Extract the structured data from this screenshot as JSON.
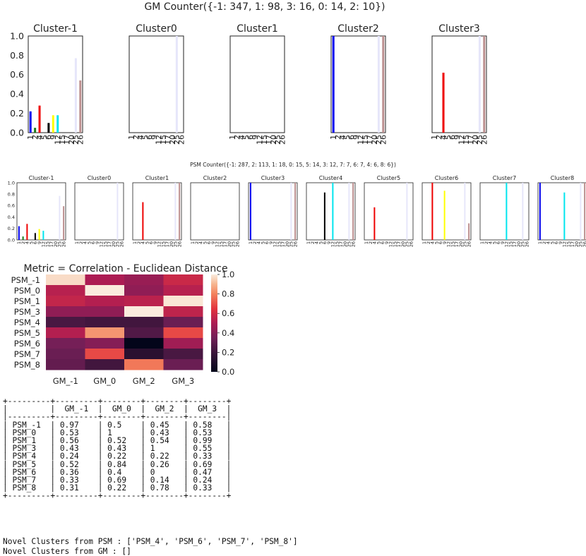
{
  "chart_data": [
    {
      "type": "bar",
      "title": "GM Counter({-1: 347, 1: 98, 3: 16, 0: 14, 2: 10})",
      "ylim": [
        0,
        1.0
      ],
      "yticks": [
        "0.0",
        "0.2",
        "0.4",
        "0.6",
        "0.8",
        "1.0"
      ],
      "categories": [
        "1",
        "2",
        "4",
        "5",
        "6",
        "9",
        "12",
        "15",
        "17",
        "20",
        "25",
        "26"
      ],
      "subplots": [
        {
          "title": "Cluster-1",
          "bars": [
            {
              "x": "1",
              "value": 0.22,
              "color": "#0000ee"
            },
            {
              "x": "2",
              "value": 0.05,
              "color": "#1a7a1a"
            },
            {
              "x": "4",
              "value": 0.28,
              "color": "#ee0000"
            },
            {
              "x": "6",
              "value": 0.1,
              "color": "#000000"
            },
            {
              "x": "9",
              "value": 0.18,
              "color": "#ffff00"
            },
            {
              "x": "12",
              "value": 0.18,
              "color": "#00e5ee"
            },
            {
              "x": "25",
              "value": 0.77,
              "color": "#e6e6fa"
            },
            {
              "x": "26",
              "value": 0.54,
              "color": "#bc8f8f"
            }
          ]
        },
        {
          "title": "Cluster0",
          "bars": [
            {
              "x": "25",
              "value": 1.0,
              "color": "#e6e6fa"
            }
          ]
        },
        {
          "title": "Cluster1",
          "bars": []
        },
        {
          "title": "Cluster2",
          "bars": [
            {
              "x": "1",
              "value": 1.0,
              "color": "#0000ee"
            },
            {
              "x": "25",
              "value": 1.0,
              "color": "#e6e6fa"
            },
            {
              "x": "26",
              "value": 1.0,
              "color": "#bc8f8f"
            }
          ]
        },
        {
          "title": "Cluster3",
          "bars": [
            {
              "x": "4",
              "value": 0.62,
              "color": "#ee0000"
            },
            {
              "x": "25",
              "value": 1.0,
              "color": "#e6e6fa"
            },
            {
              "x": "26",
              "value": 1.0,
              "color": "#bc8f8f"
            }
          ]
        }
      ]
    },
    {
      "type": "bar",
      "title": "PSM Counter({-1: 287, 2: 113, 1: 18, 0: 15, 5: 14, 3: 12, 7: 7, 6: 7, 4: 6, 8: 6})",
      "ylim": [
        0,
        1.0
      ],
      "yticks": [
        "0.0",
        "0.2",
        "0.4",
        "0.6",
        "0.8",
        "1.0"
      ],
      "categories": [
        "1",
        "2",
        "4",
        "5",
        "6",
        "9",
        "12",
        "15",
        "17",
        "20",
        "25",
        "26"
      ],
      "subplots": [
        {
          "title": "Cluster-1",
          "bars": [
            {
              "x": "1",
              "value": 0.24,
              "color": "#0000ee"
            },
            {
              "x": "2",
              "value": 0.06,
              "color": "#1a7a1a"
            },
            {
              "x": "4",
              "value": 0.28,
              "color": "#ee0000"
            },
            {
              "x": "6",
              "value": 0.12,
              "color": "#000000"
            },
            {
              "x": "9",
              "value": 0.19,
              "color": "#ffff00"
            },
            {
              "x": "12",
              "value": 0.16,
              "color": "#00e5ee"
            },
            {
              "x": "25",
              "value": 0.77,
              "color": "#e6e6fa"
            },
            {
              "x": "26",
              "value": 0.59,
              "color": "#bc8f8f"
            }
          ]
        },
        {
          "title": "Cluster0",
          "bars": [
            {
              "x": "25",
              "value": 1.0,
              "color": "#e6e6fa"
            }
          ]
        },
        {
          "title": "Cluster1",
          "bars": [
            {
              "x": "4",
              "value": 0.66,
              "color": "#ee0000"
            },
            {
              "x": "25",
              "value": 1.0,
              "color": "#e6e6fa"
            },
            {
              "x": "26",
              "value": 1.0,
              "color": "#bc8f8f"
            }
          ]
        },
        {
          "title": "Cluster2",
          "bars": []
        },
        {
          "title": "Cluster3",
          "bars": [
            {
              "x": "1",
              "value": 1.0,
              "color": "#0000ee"
            },
            {
              "x": "25",
              "value": 1.0,
              "color": "#e6e6fa"
            },
            {
              "x": "26",
              "value": 1.0,
              "color": "#bc8f8f"
            }
          ]
        },
        {
          "title": "Cluster4",
          "bars": [
            {
              "x": "6",
              "value": 0.83,
              "color": "#000000"
            },
            {
              "x": "12",
              "value": 1.0,
              "color": "#00e5ee"
            },
            {
              "x": "25",
              "value": 1.0,
              "color": "#e6e6fa"
            },
            {
              "x": "26",
              "value": 1.0,
              "color": "#bc8f8f"
            }
          ]
        },
        {
          "title": "Cluster5",
          "bars": [
            {
              "x": "4",
              "value": 0.57,
              "color": "#ee0000"
            },
            {
              "x": "25",
              "value": 1.0,
              "color": "#e6e6fa"
            }
          ]
        },
        {
          "title": "Cluster6",
          "bars": [
            {
              "x": "4",
              "value": 1.0,
              "color": "#ee0000"
            },
            {
              "x": "9",
              "value": 0.86,
              "color": "#ffff00"
            },
            {
              "x": "25",
              "value": 1.0,
              "color": "#e6e6fa"
            },
            {
              "x": "26",
              "value": 0.29,
              "color": "#bc8f8f"
            }
          ]
        },
        {
          "title": "Cluster7",
          "bars": [
            {
              "x": "12",
              "value": 1.0,
              "color": "#00e5ee"
            },
            {
              "x": "25",
              "value": 1.0,
              "color": "#e6e6fa"
            }
          ]
        },
        {
          "title": "Cluster8",
          "bars": [
            {
              "x": "1",
              "value": 1.0,
              "color": "#0000ee"
            },
            {
              "x": "12",
              "value": 0.83,
              "color": "#00e5ee"
            },
            {
              "x": "25",
              "value": 1.0,
              "color": "#e6e6fa"
            },
            {
              "x": "26",
              "value": 1.0,
              "color": "#bc8f8f"
            }
          ]
        }
      ]
    },
    {
      "type": "heatmap",
      "title": "Metric = Correlation - Euclidean Distance",
      "xlabels": [
        "GM_-1",
        "GM_0",
        "GM_2",
        "GM_3"
      ],
      "ylabels": [
        "PSM_-1",
        "PSM_0",
        "PSM_1",
        "PSM_3",
        "PSM_4",
        "PSM_5",
        "PSM_6",
        "PSM_7",
        "PSM_8"
      ],
      "values": [
        [
          0.97,
          0.5,
          0.45,
          0.58
        ],
        [
          0.53,
          1,
          0.43,
          0.53
        ],
        [
          0.56,
          0.52,
          0.54,
          0.99
        ],
        [
          0.43,
          0.43,
          1,
          0.55
        ],
        [
          0.24,
          0.22,
          0.22,
          0.33
        ],
        [
          0.52,
          0.84,
          0.26,
          0.69
        ],
        [
          0.36,
          0.4,
          0,
          0.47
        ],
        [
          0.33,
          0.69,
          0.14,
          0.24
        ],
        [
          0.31,
          0.22,
          0.78,
          0.33
        ]
      ],
      "vmin": 0.0,
      "vmax": 1.0,
      "colorbar_ticks": [
        "0.0",
        "0.2",
        "0.4",
        "0.6",
        "0.8",
        "1.0"
      ]
    }
  ],
  "table": {
    "header": [
      "",
      "GM_-1",
      "GM_0",
      "GM_2",
      "GM_3"
    ],
    "rows": [
      [
        "PSM_-1",
        "0.97",
        "0.5",
        "0.45",
        "0.58"
      ],
      [
        "PSM_0",
        "0.53",
        "1",
        "0.43",
        "0.53"
      ],
      [
        "PSM_1",
        "0.56",
        "0.52",
        "0.54",
        "0.99"
      ],
      [
        "PSM_3",
        "0.43",
        "0.43",
        "1",
        "0.55"
      ],
      [
        "PSM_4",
        "0.24",
        "0.22",
        "0.22",
        "0.33"
      ],
      [
        "PSM_5",
        "0.52",
        "0.84",
        "0.26",
        "0.69"
      ],
      [
        "PSM_6",
        "0.36",
        "0.4",
        "0",
        "0.47"
      ],
      [
        "PSM_7",
        "0.33",
        "0.69",
        "0.14",
        "0.24"
      ],
      [
        "PSM_8",
        "0.31",
        "0.22",
        "0.78",
        "0.33"
      ]
    ]
  },
  "output": {
    "novel_psm": "Novel Clusters from PSM : ['PSM_4', 'PSM_6', 'PSM_7', 'PSM_8']",
    "novel_gm": "Novel Clusters from GM : []"
  }
}
